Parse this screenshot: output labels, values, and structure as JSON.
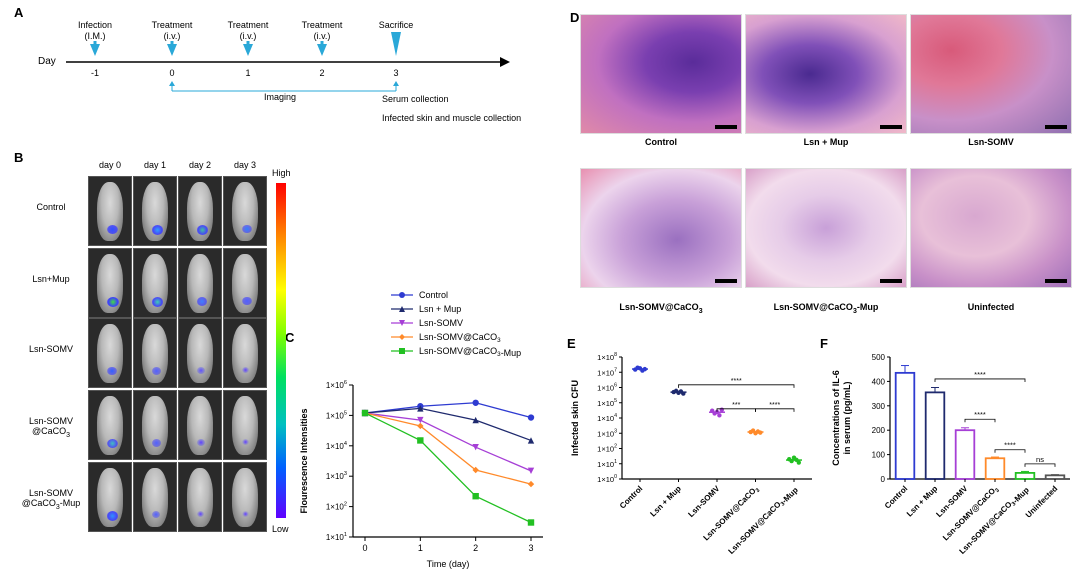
{
  "panel_letters": {
    "a": "A",
    "b": "B",
    "c": "C",
    "d": "D",
    "e": "E",
    "f": "F"
  },
  "timeline": {
    "day_label": "Day",
    "events": [
      {
        "title": "Infection",
        "sub": "(I.M.)",
        "day": "-1"
      },
      {
        "title": "Treatment",
        "sub": "(i.v.)",
        "day": "0"
      },
      {
        "title": "Treatment",
        "sub": "(i.v.)",
        "day": "1"
      },
      {
        "title": "Treatment",
        "sub": "(i.v.)",
        "day": "2"
      },
      {
        "title": "Sacrifice",
        "sub": "",
        "day": "3"
      }
    ],
    "imaging_label": "Imaging",
    "serum_label": "Serum collection",
    "tissue_label": "Infected skin and muscle collection",
    "arrow_color": "#2aa8d8"
  },
  "imaging": {
    "days": [
      "day 0",
      "day 1",
      "day 2",
      "day 3"
    ],
    "groups": [
      "Control",
      "Lsn+Mup",
      "Lsn-SOMV",
      "Lsn-SOMV\n@CaCO3",
      "Lsn-SOMV\n@CaCO3-Mup"
    ],
    "group_labels": [
      {
        "line1": "Control",
        "line2": ""
      },
      {
        "line1": "Lsn+Mup",
        "line2": ""
      },
      {
        "line1": "Lsn-SOMV",
        "line2": ""
      },
      {
        "line1": "Lsn-SOMV",
        "line2": "@CaCO3"
      },
      {
        "line1": "Lsn-SOMV",
        "line2": "@CaCO3-Mup"
      }
    ],
    "scale_high": "High",
    "scale_low": "Low"
  },
  "histology": {
    "captions": [
      "Control",
      "Lsn + Mup",
      "Lsn-SOMV",
      "Lsn-SOMV@CaCO3",
      "Lsn-SOMV@CaCO3-Mup",
      "Uninfected"
    ]
  },
  "chart_data": [
    {
      "panel": "C",
      "type": "line",
      "title": "",
      "xlabel": "Time (day)",
      "ylabel": "Flourescence Intensities",
      "x": [
        0,
        1,
        2,
        3
      ],
      "xticks": [
        "0",
        "1",
        "2",
        "3"
      ],
      "yscale": "log",
      "ylim": [
        10,
        1000000
      ],
      "yticks": [
        "1×10^1",
        "1×10^2",
        "1×10^3",
        "1×10^4",
        "1×10^5",
        "1×10^6"
      ],
      "legend_position": "top",
      "series": [
        {
          "name": "Control",
          "color": "#2e3bd1",
          "marker": "circle",
          "values": [
            120000,
            200000,
            260000,
            85000
          ]
        },
        {
          "name": "Lsn  + Mup",
          "color": "#1f2a6e",
          "marker": "triangle-up",
          "values": [
            120000,
            170000,
            70000,
            15000
          ]
        },
        {
          "name": "Lsn-SOMV",
          "color": "#a63fd6",
          "marker": "triangle-down",
          "values": [
            120000,
            70000,
            9000,
            1500
          ]
        },
        {
          "name": "Lsn-SOMV@CaCO3",
          "color": "#ff8a2a",
          "marker": "diamond",
          "values": [
            120000,
            45000,
            1600,
            550
          ]
        },
        {
          "name": "Lsn-SOMV@CaCO3-Mup",
          "color": "#22c022",
          "marker": "square",
          "values": [
            120000,
            15000,
            220,
            30
          ]
        }
      ]
    },
    {
      "panel": "E",
      "type": "scatter",
      "title": "",
      "xlabel": "",
      "ylabel": "Infected skin CFU",
      "yscale": "log",
      "ylim": [
        1,
        100000000
      ],
      "yticks": [
        "1×10^0",
        "1×10^1",
        "1×10^2",
        "1×10^3",
        "1×10^4",
        "1×10^5",
        "1×10^6",
        "1×10^7",
        "1×10^8"
      ],
      "categories": [
        "Control",
        "Lsn + Mup",
        "Lsn-SOMV",
        "Lsn-SOMV@CaCO3",
        "Lsn-SOMV@CaCO3-Mup"
      ],
      "colors": [
        "#2e3bd1",
        "#1f2a6e",
        "#a63fd6",
        "#ff8a2a",
        "#22c022"
      ],
      "values": [
        [
          15000000,
          20000000,
          18000000,
          13000000,
          16000000
        ],
        [
          500000,
          600000,
          450000,
          550000,
          400000
        ],
        [
          30000,
          20000,
          25000,
          15000,
          35000
        ],
        [
          1200,
          1500,
          1000,
          1300,
          1100
        ],
        [
          20,
          15,
          25,
          18,
          12
        ]
      ],
      "significance": [
        {
          "from": 1,
          "to": 4,
          "label": "****"
        },
        {
          "from": 2,
          "to": 3,
          "label": "***"
        },
        {
          "from": 3,
          "to": 4,
          "label": "****"
        }
      ]
    },
    {
      "panel": "F",
      "type": "bar",
      "title": "",
      "xlabel": "",
      "ylabel": "Concentrations of IL-6\nin serum (pg/mL)",
      "ylim": [
        0,
        500
      ],
      "yticks": [
        "0",
        "100",
        "200",
        "300",
        "400",
        "500"
      ],
      "categories": [
        "Control",
        "Lsn + Mup",
        "Lsn-SOMV",
        "Lsn-SOMV@CaCO3",
        "Lsn-SOMV@CaCO3-Mup",
        "Uninfected"
      ],
      "colors": [
        "#2e3bd1",
        "#1f2a6e",
        "#a63fd6",
        "#ff8a2a",
        "#22c022",
        "#555555"
      ],
      "values": [
        435,
        355,
        200,
        85,
        25,
        15
      ],
      "errors": [
        30,
        20,
        10,
        5,
        6,
        3
      ],
      "significance": [
        {
          "from": 1,
          "to": 4,
          "label": "****"
        },
        {
          "from": 2,
          "to": 3,
          "label": "****"
        },
        {
          "from": 3,
          "to": 4,
          "label": "****"
        },
        {
          "from": 4,
          "to": 5,
          "label": "ns"
        }
      ]
    }
  ]
}
